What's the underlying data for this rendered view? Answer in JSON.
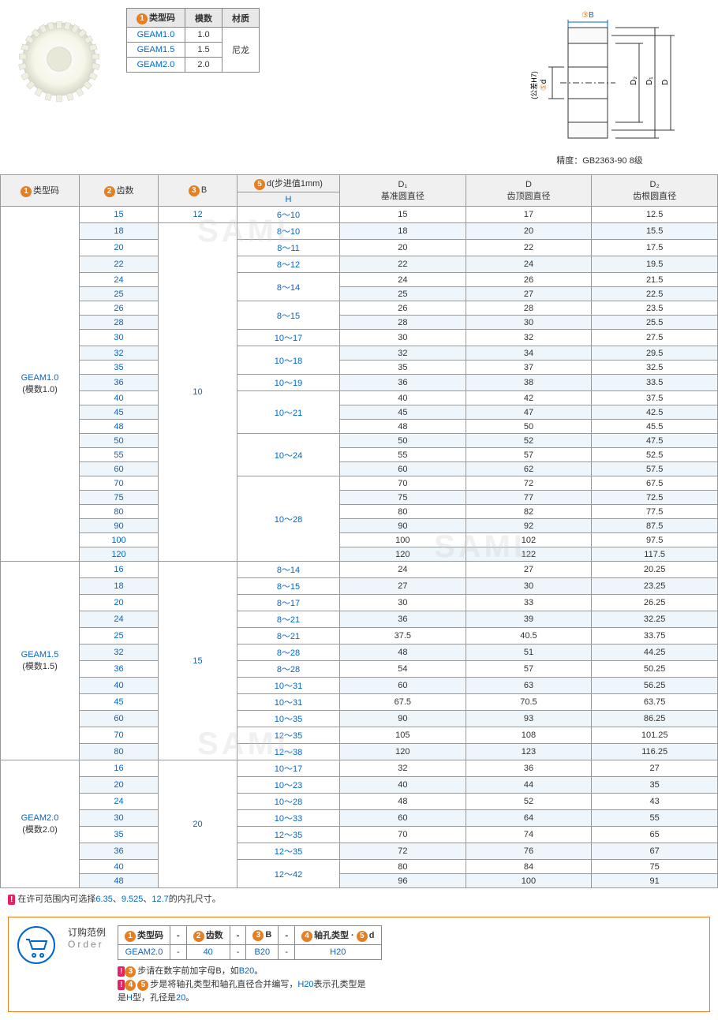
{
  "typeTable": {
    "headers": [
      "类型码",
      "模数",
      "材质"
    ],
    "rows": [
      [
        "GEAM1.0",
        "1.0",
        ""
      ],
      [
        "GEAM1.5",
        "1.5",
        "尼龙"
      ],
      [
        "GEAM2.0",
        "2.0",
        ""
      ]
    ],
    "badge1": "1"
  },
  "diagram": {
    "label_3B": "B",
    "label_5d": "d",
    "tolerance": "(公差H7)",
    "labels": [
      "D₂",
      "D₁",
      "D"
    ],
    "badge3": "3",
    "badge5": "5"
  },
  "precision": "精度：GB2363-90 8级",
  "mainHeaders": {
    "h1": "类型码",
    "b1": "1",
    "h2": "齿数",
    "b2": "2",
    "h3": "B",
    "b3": "3",
    "h4": "d(步进值1mm)",
    "b5": "5",
    "h4sub": "H",
    "h5": "D₁",
    "h5s": "基准圆直径",
    "h6": "D",
    "h6s": "齿顶圆直径",
    "h7": "D₂",
    "h7s": "齿根圆直径"
  },
  "groups": [
    {
      "type": "GEAM1.0",
      "module": "(模数1.0)",
      "rows": [
        {
          "teeth": "15",
          "b": "12",
          "d": "6～10",
          "d1": "15",
          "dd": "17",
          "d2": "12.5",
          "alt": 0,
          "bspan": 1
        },
        {
          "teeth": "18",
          "b": "10",
          "d": "8～10",
          "d1": "18",
          "dd": "20",
          "d2": "15.5",
          "alt": 1,
          "bspan": 23
        },
        {
          "teeth": "20",
          "d": "8～11",
          "d1": "20",
          "dd": "22",
          "d2": "17.5",
          "alt": 0
        },
        {
          "teeth": "22",
          "d": "8～12",
          "d1": "22",
          "dd": "24",
          "d2": "19.5",
          "alt": 1
        },
        {
          "teeth": "24",
          "d": "8～14",
          "dspan": 2,
          "d1": "24",
          "dd": "26",
          "d2": "21.5",
          "alt": 0
        },
        {
          "teeth": "25",
          "d1": "25",
          "dd": "27",
          "d2": "22.5",
          "alt": 1
        },
        {
          "teeth": "26",
          "d": "8～15",
          "dspan": 2,
          "d1": "26",
          "dd": "28",
          "d2": "23.5",
          "alt": 0
        },
        {
          "teeth": "28",
          "d1": "28",
          "dd": "30",
          "d2": "25.5",
          "alt": 1
        },
        {
          "teeth": "30",
          "d": "10～17",
          "d1": "30",
          "dd": "32",
          "d2": "27.5",
          "alt": 0
        },
        {
          "teeth": "32",
          "d": "10～18",
          "dspan": 2,
          "d1": "32",
          "dd": "34",
          "d2": "29.5",
          "alt": 1
        },
        {
          "teeth": "35",
          "d1": "35",
          "dd": "37",
          "d2": "32.5",
          "alt": 0
        },
        {
          "teeth": "36",
          "d": "10～19",
          "d1": "36",
          "dd": "38",
          "d2": "33.5",
          "alt": 1
        },
        {
          "teeth": "40",
          "d": "10～21",
          "dspan": 3,
          "d1": "40",
          "dd": "42",
          "d2": "37.5",
          "alt": 0
        },
        {
          "teeth": "45",
          "d1": "45",
          "dd": "47",
          "d2": "42.5",
          "alt": 1
        },
        {
          "teeth": "48",
          "d1": "48",
          "dd": "50",
          "d2": "45.5",
          "alt": 0
        },
        {
          "teeth": "50",
          "d": "10～24",
          "dspan": 3,
          "d1": "50",
          "dd": "52",
          "d2": "47.5",
          "alt": 1
        },
        {
          "teeth": "55",
          "d1": "55",
          "dd": "57",
          "d2": "52.5",
          "alt": 0
        },
        {
          "teeth": "60",
          "d1": "60",
          "dd": "62",
          "d2": "57.5",
          "alt": 1
        },
        {
          "teeth": "70",
          "d": "10～28",
          "dspan": 6,
          "d1": "70",
          "dd": "72",
          "d2": "67.5",
          "alt": 0
        },
        {
          "teeth": "75",
          "d1": "75",
          "dd": "77",
          "d2": "72.5",
          "alt": 1
        },
        {
          "teeth": "80",
          "d1": "80",
          "dd": "82",
          "d2": "77.5",
          "alt": 0
        },
        {
          "teeth": "90",
          "d1": "90",
          "dd": "92",
          "d2": "87.5",
          "alt": 1
        },
        {
          "teeth": "100",
          "d1": "100",
          "dd": "102",
          "d2": "97.5",
          "alt": 0
        },
        {
          "teeth": "120",
          "d1": "120",
          "dd": "122",
          "d2": "117.5",
          "alt": 1
        }
      ]
    },
    {
      "type": "GEAM1.5",
      "module": "(模数1.5)",
      "rows": [
        {
          "teeth": "16",
          "b": "15",
          "bspan": 12,
          "d": "8～14",
          "d1": "24",
          "dd": "27",
          "d2": "20.25",
          "alt": 0
        },
        {
          "teeth": "18",
          "d": "8～15",
          "d1": "27",
          "dd": "30",
          "d2": "23.25",
          "alt": 1
        },
        {
          "teeth": "20",
          "d": "8～17",
          "d1": "30",
          "dd": "33",
          "d2": "26.25",
          "alt": 0
        },
        {
          "teeth": "24",
          "d": "8～21",
          "d1": "36",
          "dd": "39",
          "d2": "32.25",
          "alt": 1
        },
        {
          "teeth": "25",
          "d": "8～21",
          "d1": "37.5",
          "dd": "40.5",
          "d2": "33.75",
          "alt": 0
        },
        {
          "teeth": "32",
          "d": "8～28",
          "d1": "48",
          "dd": "51",
          "d2": "44.25",
          "alt": 1
        },
        {
          "teeth": "36",
          "d": "8～28",
          "d1": "54",
          "dd": "57",
          "d2": "50.25",
          "alt": 0
        },
        {
          "teeth": "40",
          "d": "10～31",
          "d1": "60",
          "dd": "63",
          "d2": "56.25",
          "alt": 1
        },
        {
          "teeth": "45",
          "d": "10～31",
          "d1": "67.5",
          "dd": "70.5",
          "d2": "63.75",
          "alt": 0
        },
        {
          "teeth": "60",
          "d": "10～35",
          "d1": "90",
          "dd": "93",
          "d2": "86.25",
          "alt": 1
        },
        {
          "teeth": "70",
          "d": "12～35",
          "d1": "105",
          "dd": "108",
          "d2": "101.25",
          "alt": 0
        },
        {
          "teeth": "80",
          "d": "12～38",
          "d1": "120",
          "dd": "123",
          "d2": "116.25",
          "alt": 1
        }
      ]
    },
    {
      "type": "GEAM2.0",
      "module": "(模数2.0)",
      "rows": [
        {
          "teeth": "16",
          "b": "20",
          "bspan": 8,
          "d": "10～17",
          "d1": "32",
          "dd": "36",
          "d2": "27",
          "alt": 0
        },
        {
          "teeth": "20",
          "d": "10～23",
          "d1": "40",
          "dd": "44",
          "d2": "35",
          "alt": 1
        },
        {
          "teeth": "24",
          "d": "10～28",
          "d1": "48",
          "dd": "52",
          "d2": "43",
          "alt": 0
        },
        {
          "teeth": "30",
          "d": "10～33",
          "d1": "60",
          "dd": "64",
          "d2": "55",
          "alt": 1
        },
        {
          "teeth": "35",
          "d": "12～35",
          "d1": "70",
          "dd": "74",
          "d2": "65",
          "alt": 0
        },
        {
          "teeth": "36",
          "d": "12～35",
          "d1": "72",
          "dd": "76",
          "d2": "67",
          "alt": 1
        },
        {
          "teeth": "40",
          "d": "12～42",
          "dspan": 2,
          "d1": "80",
          "dd": "84",
          "d2": "75",
          "alt": 0
        },
        {
          "teeth": "48",
          "d1": "96",
          "dd": "100",
          "d2": "91",
          "alt": 1
        }
      ]
    }
  ],
  "note": {
    "badge": "!",
    "text1": "在许可范围内可选择",
    "v1": "6.35",
    "v2": "9.525",
    "v3": "12.7",
    "text2": "的内孔尺寸。"
  },
  "order": {
    "title1": "订购范例",
    "title2": "Order",
    "headers": [
      "类型码",
      "齿数",
      "B",
      "轴孔类型 · ",
      "d"
    ],
    "badges": [
      "1",
      "2",
      "3",
      "4",
      "5"
    ],
    "sep": "-",
    "example": [
      "GEAM2.0",
      "40",
      "B20",
      "H20"
    ],
    "note1a": "步请在数字前加字母B，如",
    "note1b": "B20",
    "note1c": "。",
    "note2a": "步是将轴孔类型和轴孔直径合并编写，",
    "note2b": "H20",
    "note2c": "表示孔类型是",
    "note2d": "H",
    "note2e": "型，孔径是",
    "note2f": "20",
    "note2g": "。",
    "badge3": "3",
    "badge45a": "4",
    "badge45b": "5"
  },
  "watermark": "SAML",
  "colors": {
    "link": "#0066cc",
    "badge": "#e67e22",
    "noteBadge": "#e91e63",
    "altRow": "#eef5fb",
    "border": "#999"
  }
}
